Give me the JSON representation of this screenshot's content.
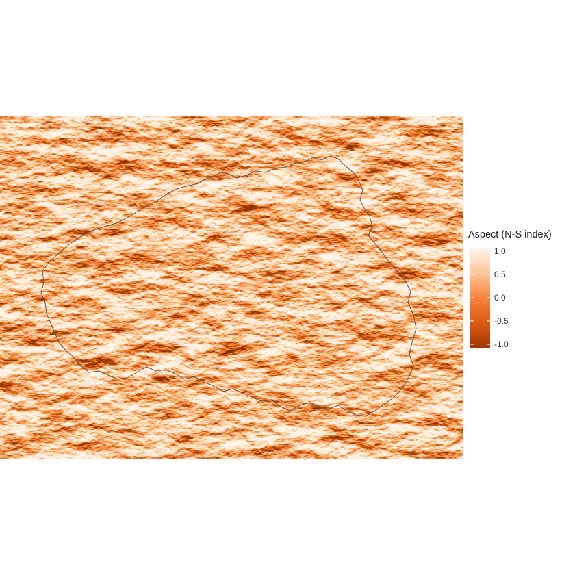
{
  "map": {
    "layer": "aspect-north-south-index",
    "palette": {
      "low": "#a13803",
      "mid": "#f8843f",
      "high": "#fff5eb"
    },
    "outline_color": "#545454",
    "outline": "catchment-boundary"
  },
  "legend": {
    "title": "Aspect (N-S index)",
    "range": [
      -1.0,
      1.0
    ],
    "ticks": [
      "1.0",
      "0.5",
      "0.0",
      "-0.5",
      "-1.0"
    ]
  }
}
